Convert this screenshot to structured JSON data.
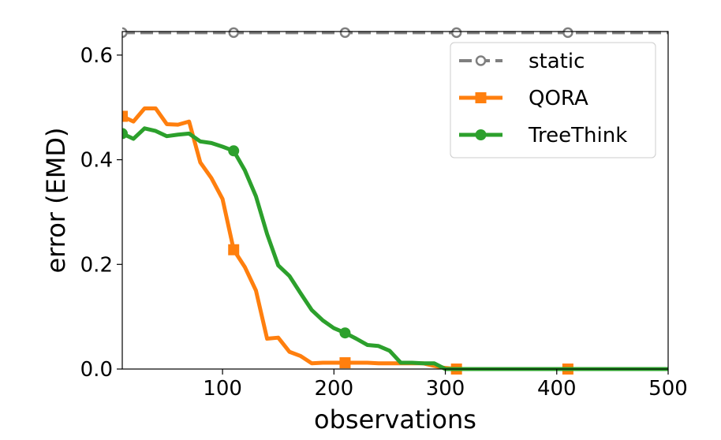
{
  "chart_data": {
    "type": "line",
    "title": "",
    "xlabel": "observations",
    "ylabel": "error (EMD)",
    "xlim": [
      10,
      500
    ],
    "ylim": [
      0,
      0.645
    ],
    "xticks": [
      100,
      200,
      300,
      400,
      500
    ],
    "xtick_labels": [
      "100",
      "200",
      "300",
      "400",
      "500"
    ],
    "yticks": [
      0.0,
      0.2,
      0.4,
      0.6
    ],
    "ytick_labels": [
      "0.0",
      "0.2",
      "0.4",
      "0.6"
    ],
    "legend_position": "top-right",
    "series": [
      {
        "name": "static",
        "color": "#7f7f7f",
        "style": "dashed",
        "marker": "open-circle",
        "x": [
          10,
          500
        ],
        "y": [
          0.643,
          0.643
        ],
        "marker_x": [
          10,
          110,
          210,
          310,
          410
        ],
        "marker_y": [
          0.643,
          0.643,
          0.643,
          0.643,
          0.643
        ]
      },
      {
        "name": "QORA",
        "color": "#ff7f0e",
        "style": "solid",
        "marker": "square",
        "x": [
          10,
          20,
          30,
          40,
          50,
          60,
          70,
          80,
          90,
          100,
          110,
          120,
          130,
          140,
          150,
          160,
          170,
          180,
          190,
          200,
          210,
          220,
          230,
          240,
          250,
          260,
          270,
          280,
          290,
          300,
          310,
          320,
          330,
          340,
          350,
          360,
          370,
          380,
          390,
          400,
          410,
          420,
          430,
          440,
          450,
          460,
          470,
          480,
          490,
          500
        ],
        "y": [
          0.483,
          0.473,
          0.498,
          0.498,
          0.468,
          0.467,
          0.473,
          0.395,
          0.365,
          0.325,
          0.228,
          0.195,
          0.15,
          0.058,
          0.06,
          0.033,
          0.025,
          0.011,
          0.012,
          0.012,
          0.012,
          0.012,
          0.012,
          0.011,
          0.011,
          0.011,
          0.011,
          0.011,
          0.006,
          0.002,
          0.0,
          0.0,
          0.0,
          0.0,
          0.0,
          0.0,
          0.0,
          0.0,
          0.0,
          0.0,
          0.0,
          0.0,
          0.0,
          0.0,
          0.0,
          0.0,
          0.0,
          0.0,
          0.0,
          0.0
        ],
        "marker_x": [
          10,
          110,
          210,
          310,
          410
        ],
        "marker_y": [
          0.483,
          0.228,
          0.012,
          0.0,
          0.0
        ]
      },
      {
        "name": "TreeThink",
        "color": "#2ca02c",
        "style": "solid",
        "marker": "circle",
        "x": [
          10,
          20,
          30,
          40,
          50,
          60,
          70,
          80,
          90,
          100,
          110,
          120,
          130,
          140,
          150,
          160,
          170,
          180,
          190,
          200,
          210,
          220,
          230,
          240,
          250,
          260,
          270,
          280,
          290,
          300,
          310,
          320,
          330,
          340,
          350,
          360,
          370,
          380,
          390,
          400,
          410,
          420,
          430,
          440,
          450,
          460,
          470,
          480,
          490,
          500
        ],
        "y": [
          0.45,
          0.44,
          0.46,
          0.455,
          0.445,
          0.448,
          0.45,
          0.435,
          0.432,
          0.425,
          0.417,
          0.38,
          0.33,
          0.258,
          0.198,
          0.178,
          0.145,
          0.113,
          0.093,
          0.078,
          0.069,
          0.058,
          0.046,
          0.044,
          0.035,
          0.012,
          0.012,
          0.011,
          0.011,
          0.0,
          0.0,
          0.0,
          0.0,
          0.0,
          0.0,
          0.0,
          0.0,
          0.0,
          0.0,
          0.0,
          0.0,
          0.0,
          0.0,
          0.0,
          0.0,
          0.0,
          0.0,
          0.0,
          0.0,
          0.0
        ],
        "marker_x": [
          10,
          110,
          210
        ],
        "marker_y": [
          0.45,
          0.417,
          0.069
        ]
      }
    ]
  }
}
